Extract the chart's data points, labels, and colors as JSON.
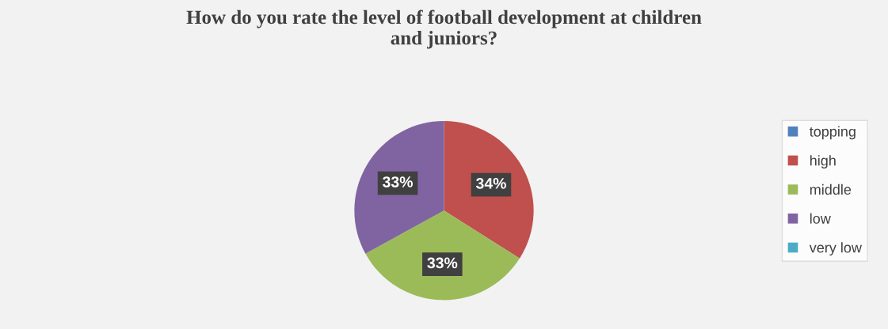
{
  "chart_data": {
    "type": "pie",
    "title": "How do you rate the level of football development at children\nand juniors?",
    "categories": [
      "topping",
      "high",
      "middle",
      "low",
      "very low"
    ],
    "values": [
      0,
      34,
      33,
      33,
      0
    ],
    "value_labels": [
      null,
      "34%",
      "33%",
      "33%",
      null
    ],
    "colors": [
      "#4f81bd",
      "#c0504d",
      "#9bbb59",
      "#8064a2",
      "#4bacc6"
    ],
    "legend": "right"
  }
}
